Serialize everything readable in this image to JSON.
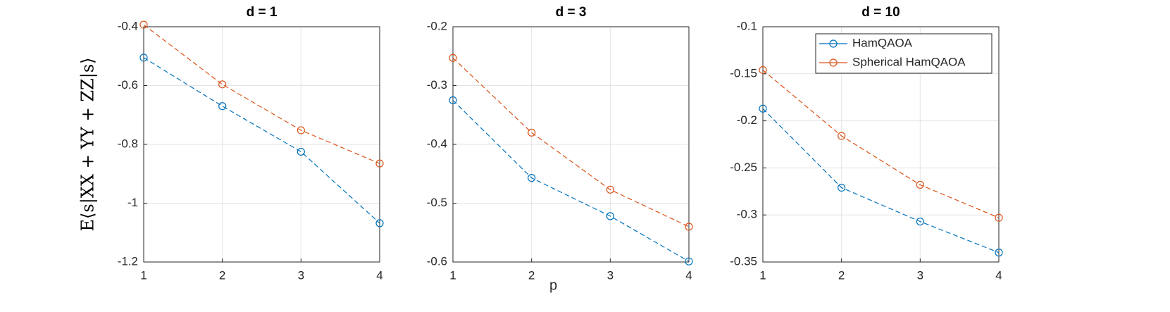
{
  "chart_data": [
    {
      "type": "line",
      "title": "d = 1",
      "ylabel": "E⟨s|XX + YY + ZZ|s⟩",
      "x": [
        1,
        2,
        3,
        4
      ],
      "xlim": [
        1,
        4
      ],
      "xticks": [
        1,
        2,
        3,
        4
      ],
      "ylim": [
        -1.2,
        -0.4
      ],
      "yticks": [
        -1.2,
        -1,
        -0.8,
        -0.6,
        -0.4
      ],
      "grid": true,
      "series": [
        {
          "color": "#0072bd",
          "values": [
            -0.505,
            -0.67,
            -0.825,
            -1.068
          ]
        },
        {
          "color": "#d95319",
          "values": [
            -0.393,
            -0.596,
            -0.752,
            -0.865
          ]
        }
      ]
    },
    {
      "type": "line",
      "title": "d = 3",
      "xlabel": "p",
      "x": [
        1,
        2,
        3,
        4
      ],
      "xlim": [
        1,
        4
      ],
      "xticks": [
        1,
        2,
        3,
        4
      ],
      "ylim": [
        -0.6,
        -0.2
      ],
      "yticks": [
        -0.6,
        -0.5,
        -0.4,
        -0.3,
        -0.2
      ],
      "grid": true,
      "series": [
        {
          "color": "#0072bd",
          "values": [
            -0.325,
            -0.457,
            -0.522,
            -0.599
          ]
        },
        {
          "color": "#d95319",
          "values": [
            -0.253,
            -0.38,
            -0.477,
            -0.54
          ]
        }
      ]
    },
    {
      "type": "line",
      "title": "d = 10",
      "x": [
        1,
        2,
        3,
        4
      ],
      "xlim": [
        1,
        4
      ],
      "xticks": [
        1,
        2,
        3,
        4
      ],
      "ylim": [
        -0.35,
        -0.1
      ],
      "yticks": [
        -0.35,
        -0.3,
        -0.25,
        -0.2,
        -0.15,
        -0.1
      ],
      "grid": true,
      "legend": "northeast",
      "series": [
        {
          "name": "HamQAOA",
          "color": "#0072bd",
          "values": [
            -0.187,
            -0.271,
            -0.307,
            -0.34
          ]
        },
        {
          "name": "Spherical HamQAOA",
          "color": "#d95319",
          "values": [
            -0.146,
            -0.216,
            -0.268,
            -0.303
          ]
        }
      ]
    }
  ]
}
